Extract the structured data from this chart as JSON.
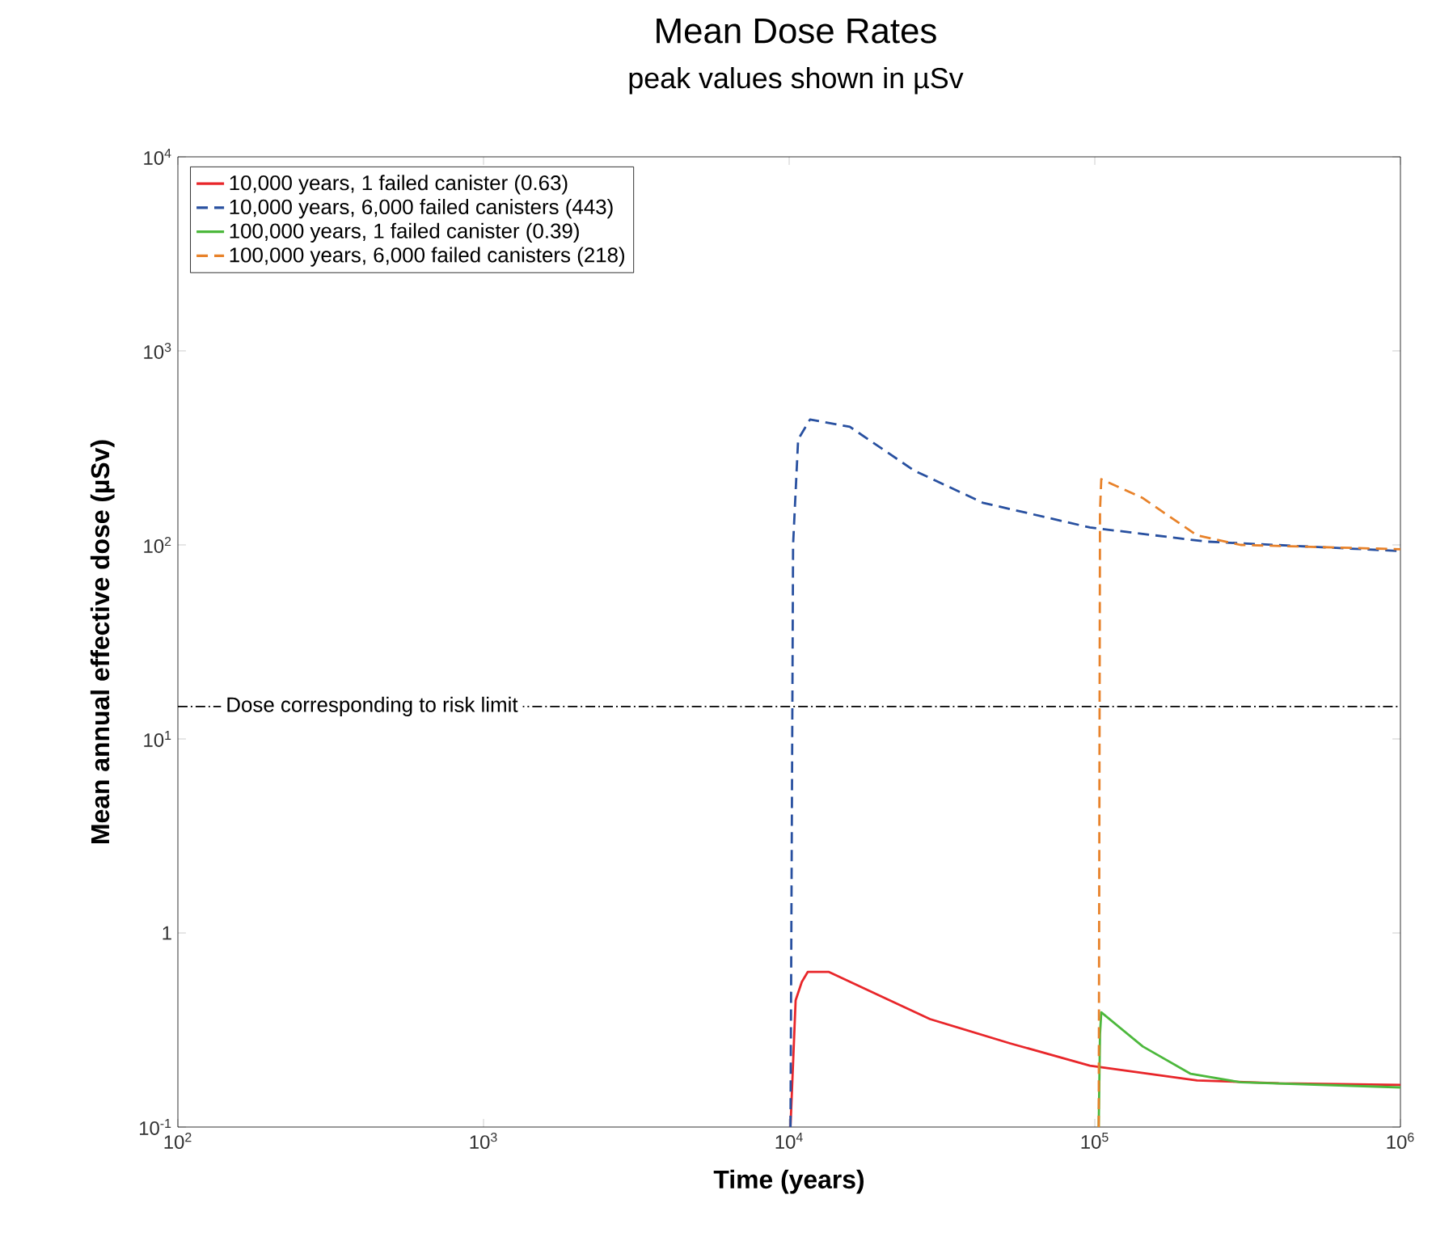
{
  "chart_data": {
    "type": "line",
    "title": "Mean Dose Rates",
    "subtitle": "peak values shown in µSv",
    "xlabel": "Time (years)",
    "ylabel": "Mean annual effective dose (µSv)",
    "log": "xy",
    "xlim": [
      100,
      1000000
    ],
    "ylim": [
      0.1,
      10000
    ],
    "xticks": [
      {
        "value": 100,
        "label": "10$^{2}$"
      },
      {
        "value": 1000,
        "label": "10$^{3}$"
      },
      {
        "value": 10000,
        "label": "10$^{4}$"
      },
      {
        "value": 100000,
        "label": "10$^{5}$"
      },
      {
        "value": 1000000,
        "label": "10$^{6}$"
      }
    ],
    "yticks": [
      {
        "value": 0.1,
        "label": "10$^{-1}$"
      },
      1,
      {
        "value": 10,
        "label": "10$^{1}$"
      },
      {
        "value": 100,
        "label": "10$^{2}$"
      },
      {
        "value": 1000,
        "label": "10$^{3}$"
      },
      {
        "value": 10000,
        "label": "10$^{4}$"
      }
    ],
    "legend": "top left",
    "marker": "none",
    "ref_lines": [
      {
        "axis": "y",
        "value": 14.7,
        "label": "Dose corresponding to risk limit",
        "color": "#000000",
        "line_style": "dashdot"
      }
    ],
    "series": [
      {
        "name": "10,000 years, 1 failed canister (0.63)",
        "color": "#e8262a",
        "line_style": "solid",
        "x": [
          10100,
          10500,
          11000,
          11500,
          13500,
          20100,
          28900,
          52800,
          96400,
          216000,
          400000,
          1000000
        ],
        "values": [
          0.1,
          0.45,
          0.56,
          0.63,
          0.63,
          0.47,
          0.36,
          0.27,
          0.207,
          0.174,
          0.168,
          0.165
        ]
      },
      {
        "name": "10,000 years, 6,000 failed canisters (443)",
        "color": "#2850a0",
        "line_style": "dashed",
        "x": [
          10100,
          10300,
          10700,
          11700,
          15800,
          25600,
          43000,
          96400,
          232000,
          1000000
        ],
        "values": [
          0.1,
          100,
          350,
          443,
          406,
          242,
          165,
          123,
          104,
          93
        ]
      },
      {
        "name": "100,000 years, 1 failed canister (0.39)",
        "color": "#4cb83c",
        "line_style": "solid",
        "x": [
          103000,
          104000,
          105000,
          143600,
          206000,
          300000,
          1000000
        ],
        "values": [
          0.1,
          0.3,
          0.39,
          0.26,
          0.188,
          0.17,
          0.16
        ]
      },
      {
        "name": "100,000 years, 6,000 failed canisters (218)",
        "color": "#e8822a",
        "line_style": "dashed",
        "x": [
          103000,
          104000,
          105000,
          143000,
          216000,
          300000,
          1000000
        ],
        "values": [
          0.1,
          150,
          218,
          175,
          112,
          100,
          95
        ]
      }
    ]
  }
}
